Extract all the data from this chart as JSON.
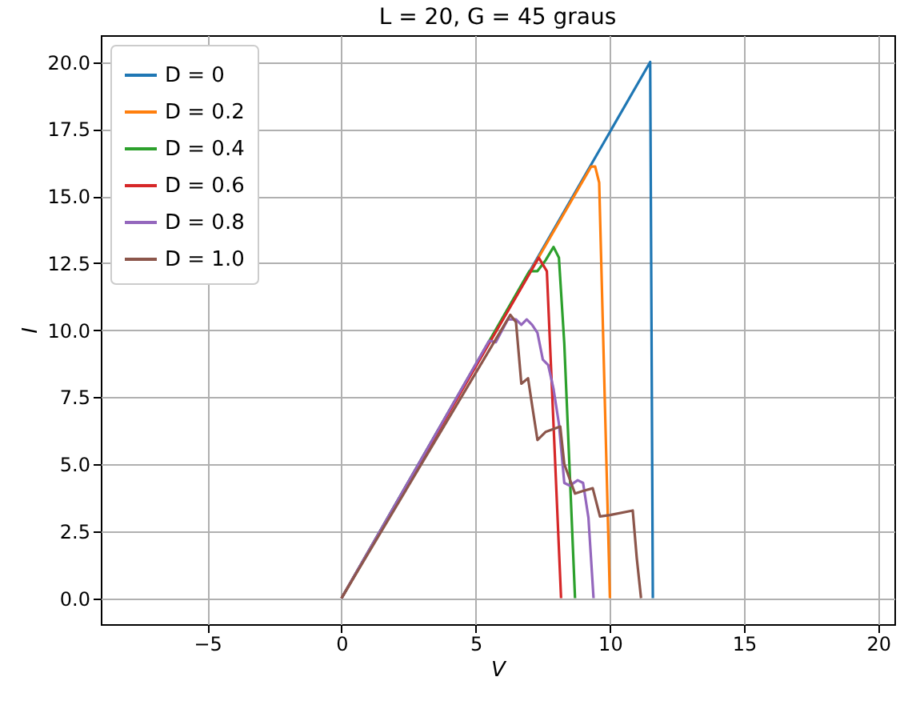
{
  "chart_data": {
    "type": "line",
    "title": "L = 20, G = 45 graus",
    "xlabel": "V",
    "ylabel": "I",
    "xlim": [
      -8.97,
      20.6
    ],
    "ylim": [
      -0.97,
      21.0
    ],
    "xticks": [
      {
        "value": -5,
        "label": "−5"
      },
      0,
      5,
      10,
      15,
      20
    ],
    "yticks": [
      {
        "value": 0,
        "label": "0.0"
      },
      {
        "value": 2.5,
        "label": "2.5"
      },
      {
        "value": 5,
        "label": "5.0"
      },
      {
        "value": 7.5,
        "label": "7.5"
      },
      {
        "value": 10,
        "label": "10.0"
      },
      {
        "value": 12.5,
        "label": "12.5"
      },
      {
        "value": 15,
        "label": "15.0"
      },
      {
        "value": 17.5,
        "label": "17.5"
      },
      {
        "value": 20,
        "label": "20.0"
      }
    ],
    "grid": true,
    "legend": "top left",
    "line_style": "solid",
    "marker": "none",
    "series": [
      {
        "name": "D = 0",
        "color": "#1f77b4",
        "x": [
          0,
          11.5,
          11.6
        ],
        "values": [
          0,
          20.0,
          0
        ]
      },
      {
        "name": "D = 0.2",
        "color": "#ff7f0e",
        "x": [
          0,
          9.3,
          9.45,
          9.6,
          10.0
        ],
        "values": [
          0,
          16.1,
          16.1,
          15.5,
          0
        ]
      },
      {
        "name": "D = 0.4",
        "color": "#2ca02c",
        "x": [
          0,
          7.0,
          7.3,
          7.6,
          7.9,
          8.1,
          8.3,
          8.7
        ],
        "values": [
          0,
          12.2,
          12.2,
          12.6,
          13.1,
          12.7,
          9.5,
          0
        ]
      },
      {
        "name": "D = 0.6",
        "color": "#d62728",
        "x": [
          0,
          7.35,
          7.65,
          8.18
        ],
        "values": [
          0,
          12.7,
          12.2,
          0
        ]
      },
      {
        "name": "D = 0.8",
        "color": "#9467bd",
        "x": [
          0,
          5.5,
          5.75,
          6.2,
          6.5,
          6.7,
          6.9,
          7.1,
          7.3,
          7.5,
          7.7,
          7.9,
          8.1,
          8.3,
          8.5,
          8.8,
          9.0,
          9.2,
          9.39
        ],
        "values": [
          0,
          9.6,
          9.55,
          10.4,
          10.4,
          10.2,
          10.4,
          10.2,
          9.9,
          8.9,
          8.7,
          7.8,
          6.5,
          4.3,
          4.2,
          4.4,
          4.3,
          3.0,
          0
        ]
      },
      {
        "name": "D = 1.0",
        "color": "#8c564b",
        "x": [
          0,
          6.29,
          6.5,
          6.7,
          6.95,
          7.1,
          7.3,
          7.6,
          8.15,
          8.3,
          8.7,
          9.0,
          9.36,
          9.63,
          10.0,
          10.85,
          11.0,
          11.16
        ],
        "values": [
          0,
          10.57,
          10.3,
          8.0,
          8.2,
          7.2,
          5.9,
          6.2,
          6.4,
          5.0,
          3.9,
          4.0,
          4.1,
          3.05,
          3.1,
          3.27,
          1.5,
          0
        ]
      }
    ]
  }
}
